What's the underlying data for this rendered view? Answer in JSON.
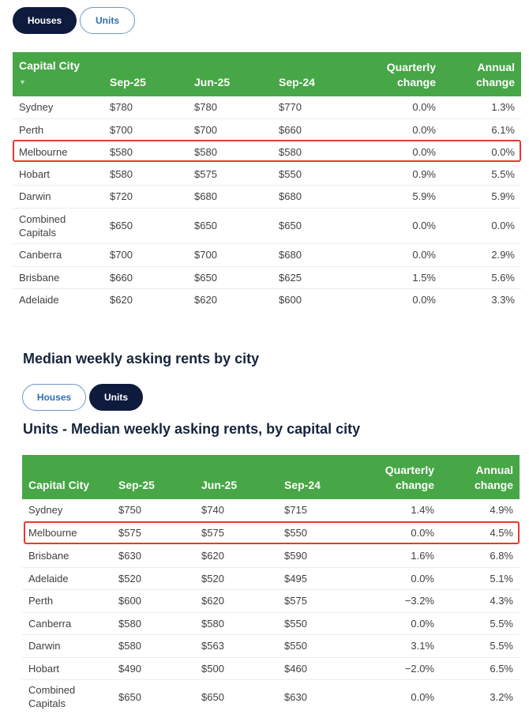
{
  "top_toggle": {
    "houses_label": "Houses",
    "units_label": "Units"
  },
  "table1": {
    "headers": {
      "city": "Capital City",
      "c1": "Sep-25",
      "c2": "Jun-25",
      "c3": "Sep-24",
      "q1": "Quarterly",
      "q2": "change",
      "a1": "Annual",
      "a2": "change"
    },
    "sort_icon": "▼",
    "rows": [
      {
        "city": "Sydney",
        "sep25": "$780",
        "jun25": "$780",
        "sep24": "$770",
        "q": "0.0%",
        "a": "1.3%"
      },
      {
        "city": "Perth",
        "sep25": "$700",
        "jun25": "$700",
        "sep24": "$660",
        "q": "0.0%",
        "a": "6.1%"
      },
      {
        "city": "Melbourne",
        "sep25": "$580",
        "jun25": "$580",
        "sep24": "$580",
        "q": "0.0%",
        "a": "0.0%"
      },
      {
        "city": "Hobart",
        "sep25": "$580",
        "jun25": "$575",
        "sep24": "$550",
        "q": "0.9%",
        "a": "5.5%"
      },
      {
        "city": "Darwin",
        "sep25": "$720",
        "jun25": "$680",
        "sep24": "$680",
        "q": "5.9%",
        "a": "5.9%"
      },
      {
        "city1": "Combined",
        "city2": "Capitals",
        "sep25": "$650",
        "jun25": "$650",
        "sep24": "$650",
        "q": "0.0%",
        "a": "0.0%"
      },
      {
        "city": "Canberra",
        "sep25": "$700",
        "jun25": "$700",
        "sep24": "$680",
        "q": "0.0%",
        "a": "2.9%"
      },
      {
        "city": "Brisbane",
        "sep25": "$660",
        "jun25": "$650",
        "sep24": "$625",
        "q": "1.5%",
        "a": "5.6%"
      },
      {
        "city": "Adelaide",
        "sep25": "$620",
        "jun25": "$620",
        "sep24": "$600",
        "q": "0.0%",
        "a": "3.3%"
      }
    ]
  },
  "section_title": "Median weekly asking rents by city",
  "bottom_toggle": {
    "houses_label": "Houses",
    "units_label": "Units"
  },
  "table2_title": "Units - Median weekly asking rents, by capital city",
  "table2": {
    "headers": {
      "city": "Capital City",
      "c1": "Sep-25",
      "c2": "Jun-25",
      "c3": "Sep-24",
      "q1": "Quarterly",
      "q2": "change",
      "a1": "Annual",
      "a2": "change"
    },
    "rows": [
      {
        "city": "Sydney",
        "sep25": "$750",
        "jun25": "$740",
        "sep24": "$715",
        "q": "1.4%",
        "a": "4.9%"
      },
      {
        "city": "Melbourne",
        "sep25": "$575",
        "jun25": "$575",
        "sep24": "$550",
        "q": "0.0%",
        "a": "4.5%"
      },
      {
        "city": "Brisbane",
        "sep25": "$630",
        "jun25": "$620",
        "sep24": "$590",
        "q": "1.6%",
        "a": "6.8%"
      },
      {
        "city": "Adelaide",
        "sep25": "$520",
        "jun25": "$520",
        "sep24": "$495",
        "q": "0.0%",
        "a": "5.1%"
      },
      {
        "city": "Perth",
        "sep25": "$600",
        "jun25": "$620",
        "sep24": "$575",
        "q": "−3.2%",
        "a": "4.3%"
      },
      {
        "city": "Canberra",
        "sep25": "$580",
        "jun25": "$580",
        "sep24": "$550",
        "q": "0.0%",
        "a": "5.5%"
      },
      {
        "city": "Darwin",
        "sep25": "$580",
        "jun25": "$563",
        "sep24": "$550",
        "q": "3.1%",
        "a": "5.5%"
      },
      {
        "city": "Hobart",
        "sep25": "$490",
        "jun25": "$500",
        "sep24": "$460",
        "q": "−2.0%",
        "a": "6.5%"
      },
      {
        "city1": "Combined",
        "city2": "Capitals",
        "sep25": "$650",
        "jun25": "$650",
        "sep24": "$630",
        "q": "0.0%",
        "a": "3.2%"
      }
    ]
  }
}
